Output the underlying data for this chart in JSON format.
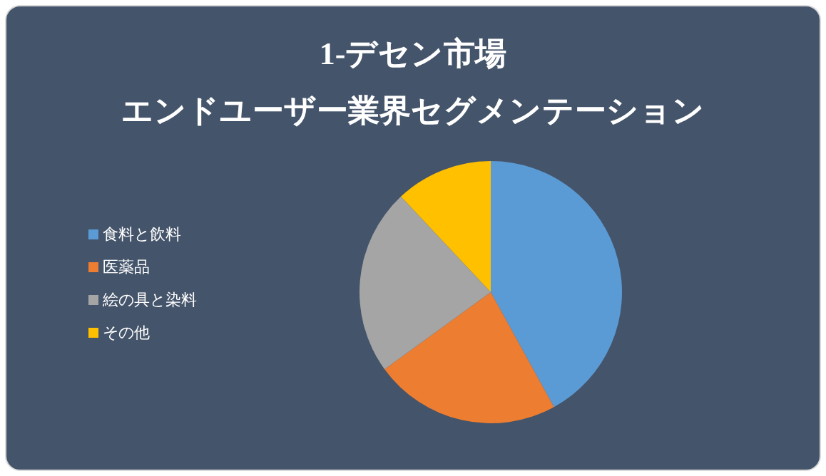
{
  "chart_data": {
    "type": "pie",
    "title": "1-デセン市場",
    "subtitle": "エンドユーザー業界セグメンテーション",
    "categories": [
      "食料と飲料",
      "医薬品",
      "絵の具と染料",
      "その他"
    ],
    "values": [
      42,
      23,
      23,
      12
    ],
    "colors": [
      "#5b9bd5",
      "#ed7d31",
      "#a5a5a5",
      "#ffc000"
    ],
    "legend": "left"
  }
}
